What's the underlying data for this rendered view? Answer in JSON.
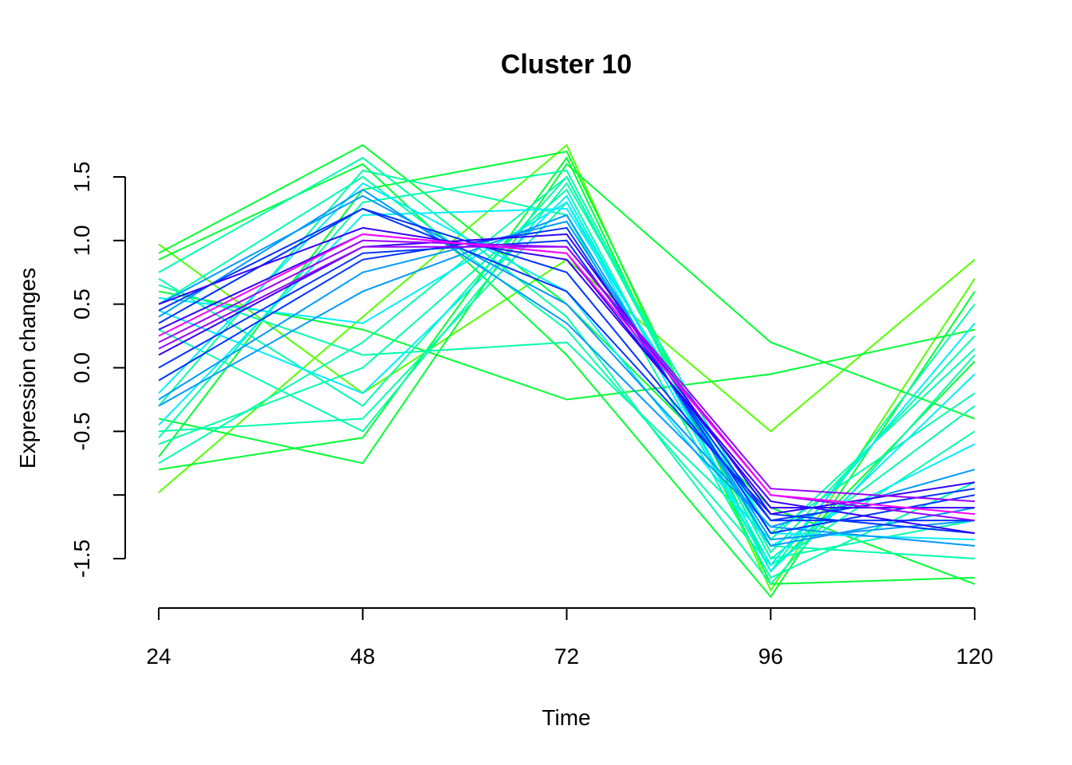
{
  "chart_data": {
    "type": "line",
    "title": "Cluster 10",
    "xlabel": "Time",
    "ylabel": "Expression changes",
    "x": [
      24,
      48,
      72,
      96,
      120
    ],
    "x_ticks": [
      "24",
      "48",
      "72",
      "96",
      "120"
    ],
    "y_ticks": [
      "-1.5",
      "-0.5",
      "0.0",
      "0.5",
      "1.0",
      "1.5"
    ],
    "y_tick_values": [
      -1.5,
      -0.5,
      0.0,
      0.5,
      1.0,
      1.5
    ],
    "y_unlabeled_tick_values": [
      -1.0
    ],
    "xlim": [
      24,
      120
    ],
    "ylim": [
      -1.5,
      1.5
    ],
    "grid": false,
    "legend": "none",
    "color_scale": [
      "#aaff00",
      "#55ff00",
      "#00ff33",
      "#00ffaa",
      "#00eeff",
      "#0099ff",
      "#0033ff",
      "#3300ff",
      "#9900ff",
      "#ff00ff"
    ],
    "series": [
      {
        "values": [
          0.97,
          -0.2,
          0.85,
          -0.5,
          0.85
        ],
        "membership": 0.1
      },
      {
        "values": [
          -0.98,
          0.4,
          1.75,
          -1.75,
          0.7
        ],
        "membership": 0.15
      },
      {
        "values": [
          0.9,
          1.75,
          0.5,
          -1.1,
          -1.7
        ],
        "membership": 0.18
      },
      {
        "values": [
          -0.4,
          -0.75,
          1.6,
          0.2,
          -0.4
        ],
        "membership": 0.2
      },
      {
        "values": [
          0.85,
          1.6,
          0.1,
          -1.8,
          0.6
        ],
        "membership": 0.22
      },
      {
        "values": [
          -0.8,
          -0.55,
          1.65,
          -1.7,
          -1.65
        ],
        "membership": 0.22
      },
      {
        "values": [
          0.6,
          0.3,
          -0.25,
          -0.05,
          0.3
        ],
        "membership": 0.25
      },
      {
        "values": [
          -0.7,
          1.4,
          1.7,
          -1.6,
          0.05
        ],
        "membership": 0.25
      },
      {
        "values": [
          0.7,
          -0.3,
          1.5,
          -1.5,
          -0.3
        ],
        "membership": 0.28
      },
      {
        "values": [
          -0.6,
          0.0,
          1.4,
          -1.6,
          0.5
        ],
        "membership": 0.28
      },
      {
        "values": [
          0.75,
          1.65,
          0.4,
          -1.7,
          0.1
        ],
        "membership": 0.3
      },
      {
        "values": [
          -0.5,
          -0.4,
          1.3,
          -1.4,
          -1.5
        ],
        "membership": 0.3
      },
      {
        "values": [
          0.5,
          1.5,
          0.3,
          -1.55,
          -0.5
        ],
        "membership": 0.32
      },
      {
        "values": [
          -0.75,
          0.2,
          1.5,
          -1.45,
          0.25
        ],
        "membership": 0.32
      },
      {
        "values": [
          0.3,
          -0.5,
          1.45,
          -1.3,
          -0.2
        ],
        "membership": 0.35
      },
      {
        "values": [
          -0.3,
          1.55,
          1.2,
          -1.65,
          -0.9
        ],
        "membership": 0.35
      },
      {
        "values": [
          0.65,
          0.1,
          0.2,
          -1.35,
          0.15
        ],
        "membership": 0.38
      },
      {
        "values": [
          -0.55,
          1.3,
          1.55,
          -1.5,
          -1.2
        ],
        "membership": 0.38
      },
      {
        "values": [
          0.45,
          -0.2,
          1.35,
          -1.55,
          0.35
        ],
        "membership": 0.4
      },
      {
        "values": [
          -0.2,
          1.45,
          0.6,
          -1.4,
          -0.6
        ],
        "membership": 0.42
      },
      {
        "values": [
          0.55,
          0.35,
          1.3,
          -1.6,
          -0.05
        ],
        "membership": 0.45
      },
      {
        "values": [
          -0.45,
          1.2,
          1.25,
          -1.3,
          -1.35
        ],
        "membership": 0.48
      },
      {
        "values": [
          0.4,
          1.4,
          0.35,
          -1.25,
          -0.8
        ],
        "membership": 0.5
      },
      {
        "values": [
          -0.3,
          0.6,
          1.2,
          -1.4,
          -1.1
        ],
        "membership": 0.52
      },
      {
        "values": [
          0.5,
          1.35,
          0.5,
          -1.25,
          -1.4
        ],
        "membership": 0.55
      },
      {
        "values": [
          -0.25,
          0.75,
          1.15,
          -1.35,
          -1.2
        ],
        "membership": 0.58
      },
      {
        "values": [
          0.35,
          1.25,
          0.6,
          -1.15,
          -1.3
        ],
        "membership": 0.62
      },
      {
        "values": [
          -0.1,
          0.85,
          1.1,
          -1.3,
          -1.0
        ],
        "membership": 0.65
      },
      {
        "values": [
          0.45,
          1.25,
          0.75,
          -1.2,
          -1.2
        ],
        "membership": 0.68
      },
      {
        "values": [
          0.0,
          0.9,
          1.0,
          -1.2,
          -0.95
        ],
        "membership": 0.72
      },
      {
        "values": [
          0.5,
          1.1,
          0.85,
          -1.05,
          -1.3
        ],
        "membership": 0.75
      },
      {
        "values": [
          0.1,
          0.95,
          1.05,
          -1.15,
          -0.9
        ],
        "membership": 0.78
      },
      {
        "values": [
          0.3,
          1.05,
          0.9,
          -1.1,
          -1.1
        ],
        "membership": 0.82
      },
      {
        "values": [
          0.2,
          1.0,
          0.95,
          -1.0,
          -1.2
        ],
        "membership": 0.86
      },
      {
        "values": [
          0.15,
          0.95,
          0.95,
          -0.95,
          -1.05
        ],
        "membership": 0.9
      },
      {
        "values": [
          0.25,
          1.05,
          0.9,
          -1.0,
          -1.15
        ],
        "membership": 0.95
      }
    ]
  }
}
